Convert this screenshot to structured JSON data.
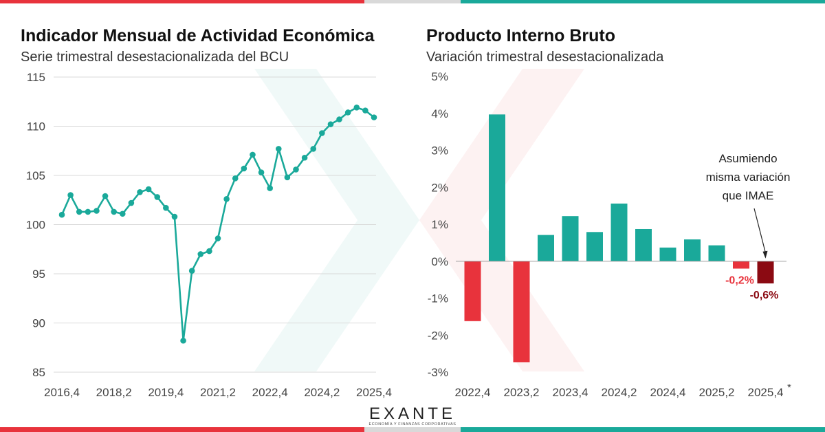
{
  "brand": {
    "name": "EXANTE",
    "tagline": "ECONOMÍA Y FINANZAS CORPORATIVAS",
    "colors": {
      "red": "#e8333c",
      "teal": "#1aa99a",
      "dark_red": "#8b0a12",
      "gray": "#d9d9d9"
    }
  },
  "chart_data": [
    {
      "type": "line",
      "title": "Indicador Mensual de Actividad Económica",
      "subtitle": "Serie trimestral desestacionalizada del BCU",
      "xlabel": "",
      "ylabel": "",
      "ylim": [
        85,
        115
      ],
      "yticks": [
        85,
        90,
        95,
        100,
        105,
        110,
        115
      ],
      "xtick_labels": [
        "2016,4",
        "2018,2",
        "2019,4",
        "2021,2",
        "2022,4",
        "2024,2",
        "2025,4"
      ],
      "x": [
        "2016,4",
        "2017,1",
        "2017,2",
        "2017,3",
        "2017,4",
        "2018,1",
        "2018,2",
        "2018,3",
        "2018,4",
        "2019,1",
        "2019,2",
        "2019,3",
        "2019,4",
        "2020,1",
        "2020,2",
        "2020,3",
        "2020,4",
        "2021,1",
        "2021,2",
        "2021,3",
        "2021,4",
        "2022,1",
        "2022,2",
        "2022,3",
        "2022,4",
        "2023,1",
        "2023,2",
        "2023,3",
        "2023,4",
        "2024,1",
        "2024,2",
        "2024,3",
        "2024,4",
        "2025,1",
        "2025,2",
        "2025,3",
        "2025,4"
      ],
      "series": [
        {
          "name": "IMAE",
          "color": "#1aa99a",
          "values": [
            101.0,
            103.0,
            101.3,
            101.3,
            101.4,
            102.9,
            101.3,
            101.1,
            102.2,
            103.3,
            103.6,
            102.8,
            101.7,
            100.8,
            88.2,
            95.3,
            97.0,
            97.3,
            98.6,
            102.6,
            104.7,
            105.7,
            107.1,
            105.3,
            103.7,
            107.7,
            104.8,
            105.6,
            106.8,
            107.7,
            109.3,
            110.2,
            110.7,
            111.4,
            111.9,
            111.6,
            110.9
          ]
        }
      ],
      "grid": true
    },
    {
      "type": "bar",
      "title": "Producto Interno Bruto",
      "subtitle": "Variación trimestral desestacionalizada",
      "xlabel": "",
      "ylabel": "",
      "ylim": [
        -3,
        5
      ],
      "yticks": [
        -3,
        -2,
        -1,
        0,
        1,
        2,
        3,
        4,
        5
      ],
      "ytick_labels": [
        "-3%",
        "-2%",
        "-1%",
        "0%",
        "1%",
        "2%",
        "3%",
        "4%",
        "5%"
      ],
      "xtick_labels": [
        "2022,4",
        "2023,2",
        "2023,4",
        "2024,2",
        "2024,4",
        "2025,2",
        "2025,4"
      ],
      "footnote_marker": "*",
      "categories": [
        "2022,4",
        "2023,1",
        "2023,2",
        "2023,3",
        "2023,4",
        "2024,1",
        "2024,2",
        "2024,3",
        "2024,4",
        "2025,1",
        "2025,2",
        "2025,3",
        "2025,4"
      ],
      "values": [
        -1.62,
        3.97,
        -2.73,
        0.71,
        1.22,
        0.79,
        1.56,
        0.87,
        0.37,
        0.59,
        0.43,
        -0.2,
        -0.6
      ],
      "colors": [
        "#e8333c",
        "#1aa99a",
        "#e8333c",
        "#1aa99a",
        "#1aa99a",
        "#1aa99a",
        "#1aa99a",
        "#1aa99a",
        "#1aa99a",
        "#1aa99a",
        "#1aa99a",
        "#e8333c",
        "#8b0a12"
      ],
      "data_labels": [
        {
          "index": 11,
          "text": "-0,2%",
          "color": "#e8333c"
        },
        {
          "index": 12,
          "text": "-0,6%",
          "color": "#8b0a12"
        }
      ],
      "annotation": {
        "lines": [
          "Asumiendo",
          "misma variación",
          "que IMAE"
        ],
        "points_to_index": 12
      },
      "grid": false
    }
  ]
}
